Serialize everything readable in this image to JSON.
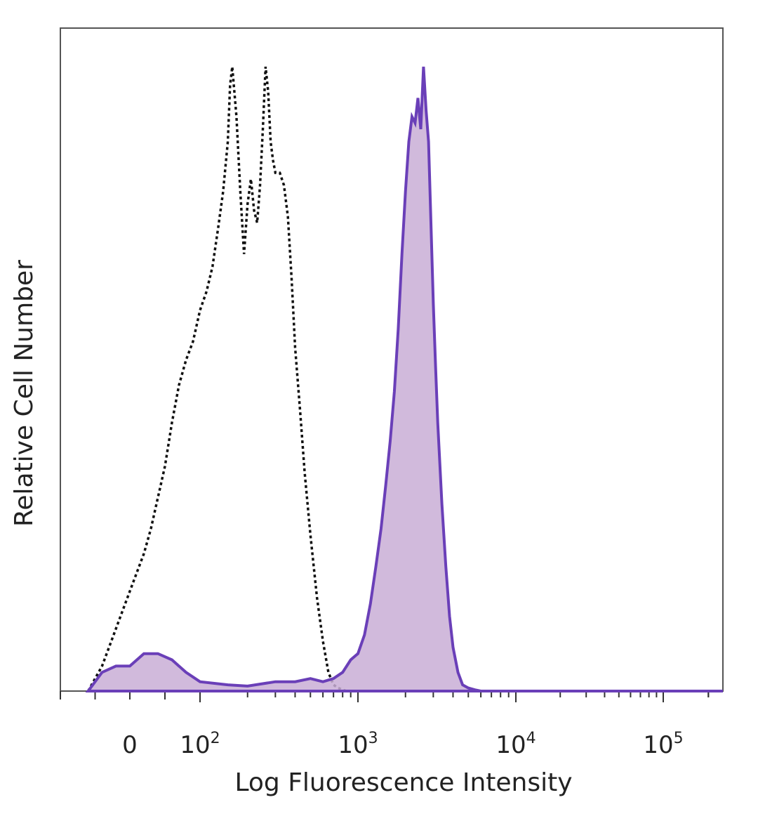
{
  "chart_data": {
    "type": "area",
    "xlabel": "Log Fluorescence Intensity",
    "ylabel": "Relative Cell Number",
    "x_scale": "biexponential",
    "xlim": [
      -100,
      250000
    ],
    "ylim": [
      0,
      100
    ],
    "grid": false,
    "x_ticks": [
      {
        "value": 0,
        "label": "0",
        "sup": ""
      },
      {
        "value": 100,
        "label": "10",
        "sup": "2"
      },
      {
        "value": 1000,
        "label": "10",
        "sup": "3"
      },
      {
        "value": 10000,
        "label": "10",
        "sup": "4"
      },
      {
        "value": 100000,
        "label": "10",
        "sup": "5"
      }
    ],
    "series": [
      {
        "style": "dotted-outline",
        "color": "#111111",
        "x": [
          -60,
          -40,
          -30,
          -20,
          -10,
          0,
          10,
          20,
          30,
          40,
          50,
          60,
          70,
          80,
          90,
          100,
          110,
          120,
          130,
          140,
          150,
          155,
          160,
          170,
          180,
          190,
          200,
          210,
          220,
          230,
          240,
          250,
          260,
          270,
          280,
          290,
          300,
          320,
          340,
          360,
          380,
          400,
          430,
          460,
          500,
          550,
          600,
          650,
          700,
          750,
          800,
          850,
          900,
          950,
          1000
        ],
        "y": [
          0,
          4,
          7,
          10,
          13,
          16,
          19,
          22,
          26,
          31,
          36,
          43,
          49,
          53,
          56,
          61,
          64,
          68,
          74,
          80,
          88,
          97,
          100,
          92,
          80,
          70,
          78,
          82,
          77,
          75,
          81,
          90,
          100,
          96,
          88,
          85,
          83,
          83,
          81,
          76,
          66,
          55,
          45,
          35,
          25,
          15,
          8,
          3,
          1,
          0.5,
          0.2,
          0,
          0,
          0,
          0
        ]
      },
      {
        "style": "filled",
        "color": "#6a3fb8",
        "fill": "#c9aed6",
        "x": [
          -60,
          -40,
          -20,
          0,
          20,
          40,
          60,
          80,
          100,
          150,
          200,
          300,
          400,
          500,
          600,
          700,
          800,
          900,
          1000,
          1100,
          1200,
          1300,
          1400,
          1500,
          1600,
          1700,
          1800,
          1900,
          2000,
          2100,
          2200,
          2300,
          2400,
          2500,
          2600,
          2700,
          2800,
          2900,
          3000,
          3100,
          3200,
          3400,
          3600,
          3800,
          4000,
          4300,
          4600,
          5000,
          5500,
          6000,
          7000,
          8000,
          10000,
          250000
        ],
        "y": [
          0,
          3,
          4,
          4,
          6,
          6,
          5,
          3,
          1.5,
          1,
          0.8,
          1.5,
          1.5,
          2,
          1.5,
          2,
          3,
          5,
          6,
          9,
          14,
          20,
          26,
          33,
          40,
          48,
          58,
          70,
          80,
          88,
          92,
          91,
          95,
          90,
          100,
          93,
          88,
          75,
          62,
          52,
          43,
          30,
          20,
          12,
          7,
          3,
          1,
          0.5,
          0.2,
          0,
          0,
          0,
          0,
          0
        ]
      }
    ]
  }
}
